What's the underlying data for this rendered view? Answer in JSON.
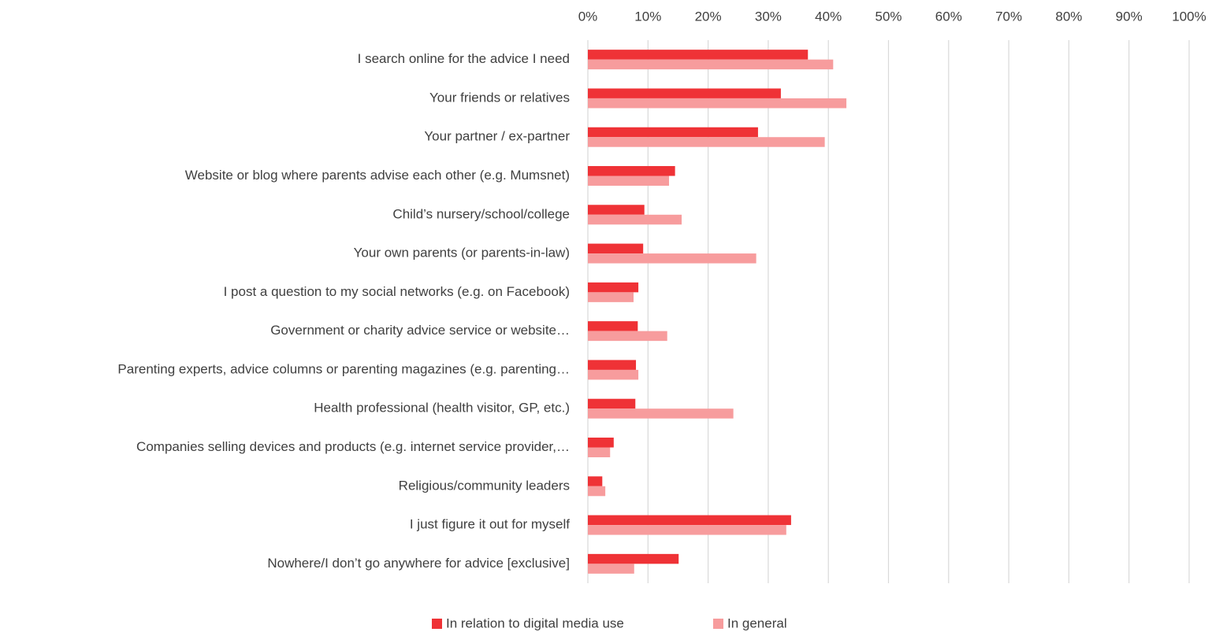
{
  "chart_data": {
    "type": "barh",
    "categories": [
      "I search online for the advice I need",
      "Your friends or relatives",
      "Your partner / ex-partner",
      "Website or blog where parents advise each other (e.g. Mumsnet)",
      "Child’s nursery/school/college",
      "Your own parents (or parents-in-law)",
      "I post a question to my social networks (e.g. on Facebook)",
      "Government or charity advice service or website…",
      "Parenting experts, advice columns or parenting magazines (e.g. parenting…",
      "Health professional (health visitor, GP, etc.)",
      "Companies selling devices and products (e.g. internet service provider,…",
      "Religious/community leaders",
      "I just figure it out for myself",
      "Nowhere/I don’t go anywhere for advice [exclusive]"
    ],
    "series": [
      {
        "name": "In relation to digital media use",
        "color": "#ef3236",
        "values": [
          36.6,
          32.1,
          28.3,
          14.5,
          9.4,
          9.2,
          8.4,
          8.3,
          8.0,
          7.9,
          4.3,
          2.4,
          33.8,
          15.1
        ]
      },
      {
        "name": "In general",
        "color": "#f79c9d",
        "values": [
          40.8,
          43.0,
          39.4,
          13.5,
          15.6,
          28.0,
          7.6,
          13.2,
          8.4,
          24.2,
          3.7,
          2.9,
          33.0,
          7.7
        ]
      }
    ],
    "xlim": [
      0,
      100
    ],
    "xticks": [
      {
        "value": 0,
        "label": "0%"
      },
      {
        "value": 10,
        "label": "10%"
      },
      {
        "value": 20,
        "label": "20%"
      },
      {
        "value": 30,
        "label": "30%"
      },
      {
        "value": 40,
        "label": "40%"
      },
      {
        "value": 50,
        "label": "50%"
      },
      {
        "value": 60,
        "label": "60%"
      },
      {
        "value": 70,
        "label": "70%"
      },
      {
        "value": 80,
        "label": "80%"
      },
      {
        "value": 90,
        "label": "90%"
      },
      {
        "value": 100,
        "label": "100%"
      }
    ],
    "grid": true,
    "legend": "bottom"
  }
}
